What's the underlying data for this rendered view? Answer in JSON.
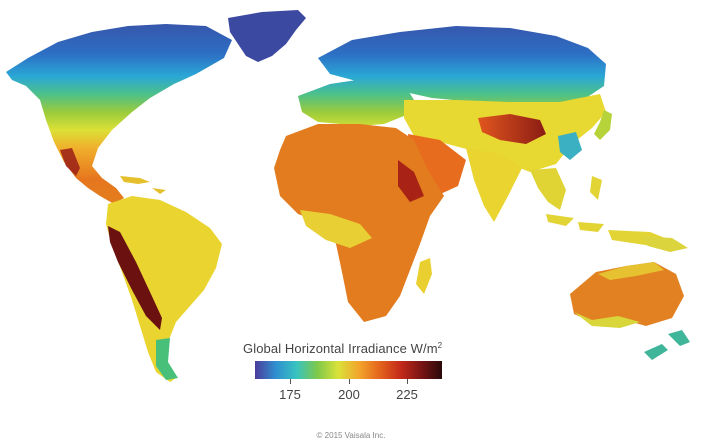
{
  "legend": {
    "title_main": "Global Horizontal Irradiance W/m",
    "title_sup": "2",
    "range": [
      160,
      240
    ],
    "ticks": [
      {
        "value": 175,
        "label": "175"
      },
      {
        "value": 200,
        "label": "200"
      },
      {
        "value": 225,
        "label": "225"
      }
    ],
    "colors": [
      "#4c3c9c",
      "#2f8fd0",
      "#38c3c0",
      "#7ec84a",
      "#d9e23a",
      "#f2a52c",
      "#e4641c",
      "#c42a1a",
      "#7a1414",
      "#2a0a0a"
    ]
  },
  "footer": {
    "copyright": "© 2015 Vaisala Inc."
  }
}
